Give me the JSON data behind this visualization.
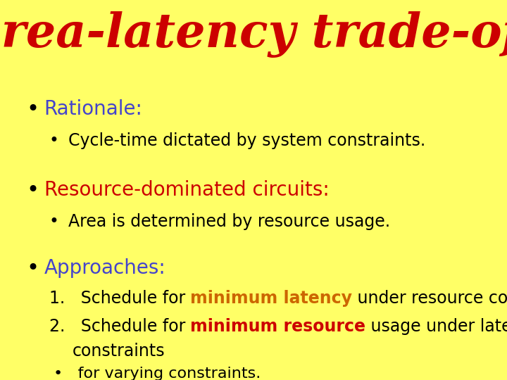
{
  "title": "Area-latency trade-off",
  "title_color": "#cc0000",
  "title_bg_color": "#ffff66",
  "title_fontsize": 48,
  "body_bg_color": "#ffffff",
  "bullet1_label": "Rationale:",
  "bullet1_color": "#4444cc",
  "bullet1_fontsize": 20,
  "bullet1_sub": "Cycle-time dictated by system constraints.",
  "bullet1_sub_color": "#000000",
  "bullet1_sub_fontsize": 17,
  "bullet2_label": "Resource-dominated circuits:",
  "bullet2_color": "#cc0000",
  "bullet2_fontsize": 20,
  "bullet2_sub": "Area is determined by resource usage.",
  "bullet2_sub_color": "#000000",
  "bullet2_sub_fontsize": 17,
  "bullet3_label": "Approaches:",
  "bullet3_color": "#4444cc",
  "bullet3_fontsize": 20,
  "item1_prefix": "1.   Schedule for ",
  "item1_highlight": "minimum latency",
  "item1_highlight_color": "#cc6600",
  "item1_suffix": " under resource constraints",
  "item2_prefix": "2.   Schedule for ",
  "item2_highlight": "minimum resource",
  "item2_highlight_color": "#cc0000",
  "item2_suffix": " usage under latency",
  "item2_cont": "       constraints",
  "item3_sub": "•   for varying constraints.",
  "item_fontsize": 17,
  "item_color": "#000000",
  "border_color": "#222222",
  "border_linewidth": 2.0
}
